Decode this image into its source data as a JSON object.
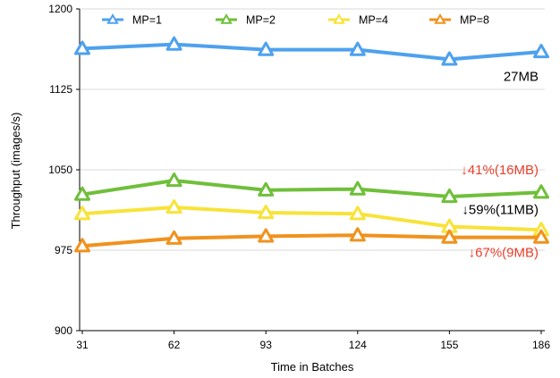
{
  "chart_data": {
    "type": "line",
    "xlabel": "Time in Batches",
    "ylabel": "Throughput (images/s)",
    "x": [
      31,
      62,
      93,
      124,
      155,
      186
    ],
    "ylim": [
      900,
      1200
    ],
    "yticks": [
      900,
      975,
      1050,
      1125,
      1200
    ],
    "xticks": [
      31,
      62,
      93,
      124,
      155,
      186
    ],
    "grid": "horizontal",
    "legend_position": "top",
    "series": [
      {
        "name": "MP=1",
        "color": "#4ea1ee",
        "values": [
          1163,
          1167,
          1162,
          1162,
          1153,
          1160
        ]
      },
      {
        "name": "MP=2",
        "color": "#6fbf3a",
        "values": [
          1027,
          1040,
          1031,
          1032,
          1025,
          1029
        ]
      },
      {
        "name": "MP=4",
        "color": "#f7e33a",
        "values": [
          1009,
          1015,
          1010,
          1009,
          997,
          994
        ]
      },
      {
        "name": "MP=8",
        "color": "#f0921e",
        "values": [
          979,
          986,
          988,
          989,
          987,
          987
        ]
      }
    ],
    "annotations": [
      {
        "text": "27MB",
        "color": "#000000",
        "anchor_y": 1137
      },
      {
        "text": "↓41%(16MB)",
        "color": "#e8412c",
        "anchor_y": 1050
      },
      {
        "text": "↓59%(11MB)",
        "color": "#000000",
        "anchor_y": 1013
      },
      {
        "text": "↓67%(9MB)",
        "color": "#e8412c",
        "anchor_y": 973
      }
    ]
  }
}
